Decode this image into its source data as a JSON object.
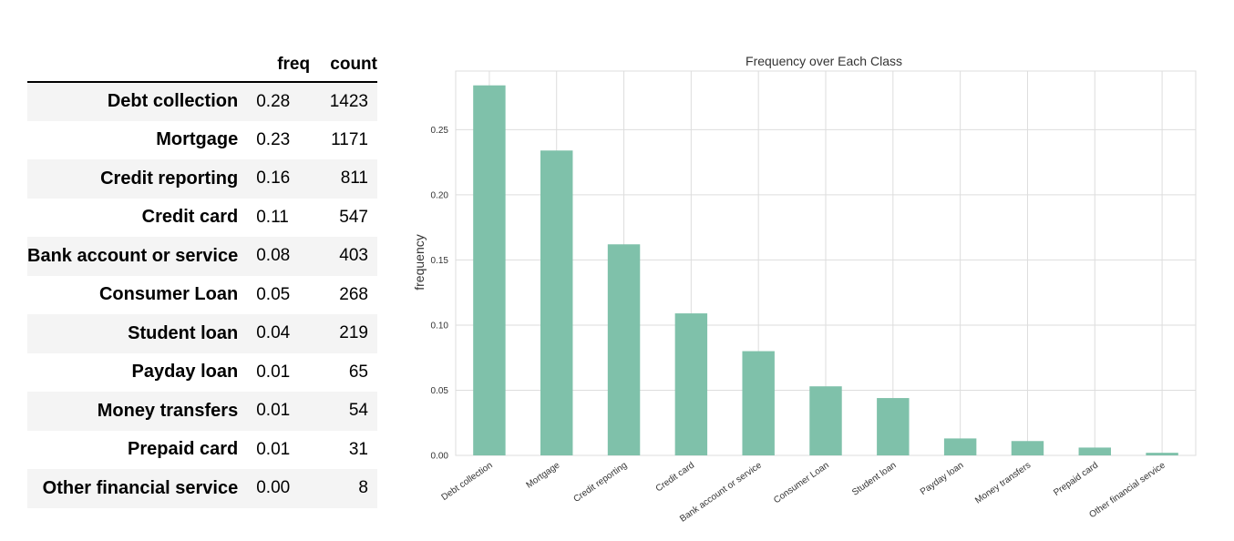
{
  "table": {
    "headers": {
      "freq": "freq",
      "count": "count"
    },
    "rows": [
      {
        "label": "Debt collection",
        "freq": "0.28",
        "count": "1423"
      },
      {
        "label": "Mortgage",
        "freq": "0.23",
        "count": "1171"
      },
      {
        "label": "Credit reporting",
        "freq": "0.16",
        "count": "811"
      },
      {
        "label": "Credit card",
        "freq": "0.11",
        "count": "547"
      },
      {
        "label": "Bank account or service",
        "freq": "0.08",
        "count": "403"
      },
      {
        "label": "Consumer Loan",
        "freq": "0.05",
        "count": "268"
      },
      {
        "label": "Student loan",
        "freq": "0.04",
        "count": "219"
      },
      {
        "label": "Payday loan",
        "freq": "0.01",
        "count": "65"
      },
      {
        "label": "Money transfers",
        "freq": "0.01",
        "count": "54"
      },
      {
        "label": "Prepaid card",
        "freq": "0.01",
        "count": "31"
      },
      {
        "label": "Other financial service",
        "freq": "0.00",
        "count": "8"
      }
    ]
  },
  "chart_data": {
    "type": "bar",
    "title": "Frequency over Each Class",
    "xlabel": "",
    "ylabel": "frequency",
    "categories": [
      "Debt collection",
      "Mortgage",
      "Credit reporting",
      "Credit card",
      "Bank account or service",
      "Consumer Loan",
      "Student loan",
      "Payday loan",
      "Money transfers",
      "Prepaid card",
      "Other financial service"
    ],
    "values": [
      0.284,
      0.234,
      0.162,
      0.109,
      0.08,
      0.053,
      0.044,
      0.013,
      0.011,
      0.006,
      0.002
    ],
    "ylim": [
      0,
      0.295
    ],
    "yticks": [
      0.0,
      0.05,
      0.1,
      0.15,
      0.2,
      0.25
    ],
    "ytick_labels": [
      "0.00",
      "0.05",
      "0.10",
      "0.15",
      "0.20",
      "0.25"
    ],
    "grid": true,
    "bar_color": "#7fc1aa",
    "grid_color": "#dddddd"
  }
}
